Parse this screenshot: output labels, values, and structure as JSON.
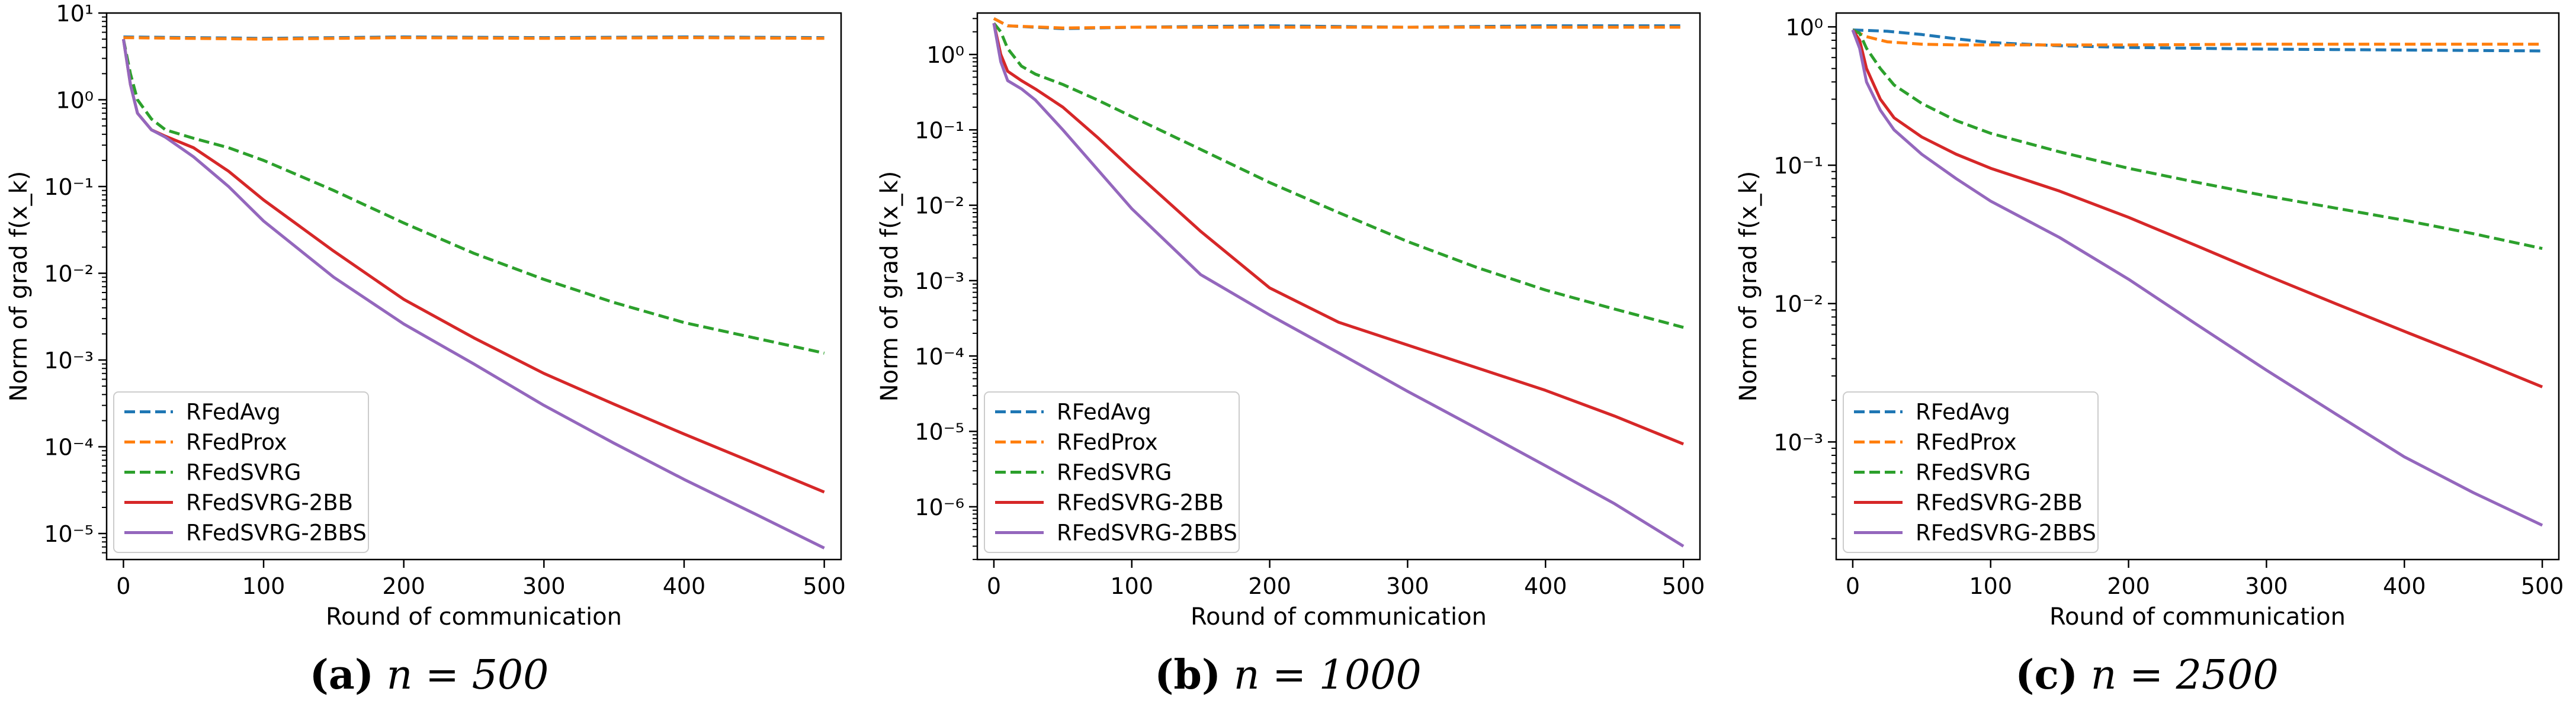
{
  "chart_data": [
    {
      "type": "line",
      "panel_label": "(a)",
      "caption_expr": "n = 500",
      "xlabel": "Round of communication",
      "ylabel": "Norm of grad f(x_k)",
      "yscale": "log",
      "xlim": [
        -12,
        512
      ],
      "ylim_log10": [
        -5.3,
        1.0
      ],
      "xticks": [
        0,
        100,
        200,
        300,
        400,
        500
      ],
      "yticks_exp": [
        -5,
        -4,
        -3,
        -2,
        -1,
        0,
        1
      ],
      "legend_loc": "lower-left",
      "series": [
        {
          "name": "RFedAvg",
          "color": "#1f77b4",
          "dash": true,
          "x": [
            0,
            100,
            200,
            300,
            400,
            500
          ],
          "y": [
            5.3,
            5.1,
            5.3,
            5.2,
            5.3,
            5.2
          ]
        },
        {
          "name": "RFedProx",
          "color": "#ff7f0e",
          "dash": true,
          "x": [
            0,
            100,
            200,
            300,
            400,
            500
          ],
          "y": [
            5.2,
            5.0,
            5.2,
            5.1,
            5.2,
            5.1
          ]
        },
        {
          "name": "RFedSVRG",
          "color": "#2ca02c",
          "dash": true,
          "x": [
            0,
            5,
            10,
            20,
            30,
            50,
            75,
            100,
            150,
            200,
            250,
            300,
            350,
            400,
            450,
            500
          ],
          "y": [
            5.0,
            2.0,
            1.0,
            0.6,
            0.45,
            0.36,
            0.28,
            0.2,
            0.09,
            0.038,
            0.017,
            0.0085,
            0.0046,
            0.0027,
            0.0018,
            0.0012
          ]
        },
        {
          "name": "RFedSVRG-2BB",
          "color": "#d62728",
          "dash": false,
          "x": [
            0,
            5,
            10,
            20,
            30,
            50,
            75,
            100,
            150,
            200,
            250,
            300,
            350,
            400,
            450,
            500
          ],
          "y": [
            5.0,
            1.5,
            0.7,
            0.45,
            0.38,
            0.28,
            0.15,
            0.07,
            0.018,
            0.005,
            0.0018,
            0.0007,
            0.00031,
            0.00014,
            6.5e-05,
            3e-05
          ]
        },
        {
          "name": "RFedSVRG-2BBS",
          "color": "#9467bd",
          "dash": false,
          "x": [
            0,
            5,
            10,
            20,
            30,
            50,
            75,
            100,
            150,
            200,
            250,
            300,
            350,
            400,
            450,
            500
          ],
          "y": [
            5.0,
            1.5,
            0.7,
            0.45,
            0.37,
            0.22,
            0.1,
            0.04,
            0.009,
            0.0026,
            0.0009,
            0.0003,
            0.00011,
            4.2e-05,
            1.7e-05,
            6.8e-06
          ]
        }
      ]
    },
    {
      "type": "line",
      "panel_label": "(b)",
      "caption_expr": "n = 1000",
      "xlabel": "Round of communication",
      "ylabel": "Norm of grad f(x_k)",
      "yscale": "log",
      "xlim": [
        -12,
        512
      ],
      "ylim_log10": [
        -6.7,
        0.55
      ],
      "xticks": [
        0,
        100,
        200,
        300,
        400,
        500
      ],
      "yticks_exp": [
        -6,
        -5,
        -4,
        -3,
        -2,
        -1,
        0
      ],
      "legend_loc": "lower-left",
      "series": [
        {
          "name": "RFedAvg",
          "color": "#1f77b4",
          "dash": true,
          "x": [
            0,
            10,
            50,
            100,
            200,
            300,
            400,
            500
          ],
          "y": [
            3.0,
            2.4,
            2.2,
            2.3,
            2.4,
            2.3,
            2.4,
            2.4
          ]
        },
        {
          "name": "RFedProx",
          "color": "#ff7f0e",
          "dash": true,
          "x": [
            0,
            10,
            50,
            100,
            200,
            300,
            400,
            500
          ],
          "y": [
            3.0,
            2.4,
            2.25,
            2.3,
            2.3,
            2.3,
            2.3,
            2.3
          ]
        },
        {
          "name": "RFedSVRG",
          "color": "#2ca02c",
          "dash": true,
          "x": [
            0,
            5,
            10,
            20,
            30,
            50,
            75,
            100,
            150,
            200,
            250,
            300,
            350,
            400,
            450,
            500
          ],
          "y": [
            2.6,
            2.0,
            1.2,
            0.7,
            0.55,
            0.4,
            0.25,
            0.15,
            0.055,
            0.02,
            0.008,
            0.0033,
            0.0015,
            0.00075,
            0.00042,
            0.00024
          ]
        },
        {
          "name": "RFedSVRG-2BB",
          "color": "#d62728",
          "dash": false,
          "x": [
            0,
            5,
            10,
            20,
            30,
            50,
            75,
            100,
            150,
            200,
            250,
            300,
            350,
            400,
            450,
            500
          ],
          "y": [
            2.6,
            1.0,
            0.6,
            0.45,
            0.35,
            0.2,
            0.08,
            0.03,
            0.0045,
            0.0008,
            0.00028,
            0.00014,
            7e-05,
            3.5e-05,
            1.6e-05,
            6.8e-06
          ]
        },
        {
          "name": "RFedSVRG-2BBS",
          "color": "#9467bd",
          "dash": false,
          "x": [
            0,
            5,
            10,
            20,
            30,
            50,
            75,
            100,
            150,
            200,
            250,
            300,
            350,
            400,
            450,
            500
          ],
          "y": [
            2.6,
            0.8,
            0.45,
            0.35,
            0.25,
            0.1,
            0.03,
            0.009,
            0.0012,
            0.00035,
            0.00011,
            3.4e-05,
            1.1e-05,
            3.5e-06,
            1.1e-06,
            3e-07
          ]
        }
      ]
    },
    {
      "type": "line",
      "panel_label": "(c)",
      "caption_expr": "n = 2500",
      "xlabel": "Round of communication",
      "ylabel": "Norm of grad f(x_k)",
      "yscale": "log",
      "xlim": [
        -12,
        512
      ],
      "ylim_log10": [
        -3.85,
        0.1
      ],
      "xticks": [
        0,
        100,
        200,
        300,
        400,
        500
      ],
      "yticks_exp": [
        -3,
        -2,
        -1,
        0
      ],
      "legend_loc": "lower-left",
      "series": [
        {
          "name": "RFedAvg",
          "color": "#1f77b4",
          "dash": true,
          "x": [
            0,
            25,
            50,
            75,
            100,
            150,
            200,
            300,
            400,
            500
          ],
          "y": [
            0.95,
            0.93,
            0.88,
            0.82,
            0.77,
            0.73,
            0.71,
            0.69,
            0.68,
            0.67
          ]
        },
        {
          "name": "RFedProx",
          "color": "#ff7f0e",
          "dash": true,
          "x": [
            0,
            10,
            25,
            50,
            75,
            100,
            150,
            200,
            300,
            400,
            500
          ],
          "y": [
            0.95,
            0.85,
            0.78,
            0.75,
            0.74,
            0.74,
            0.74,
            0.74,
            0.75,
            0.75,
            0.75
          ]
        },
        {
          "name": "RFedSVRG",
          "color": "#2ca02c",
          "dash": true,
          "x": [
            0,
            5,
            10,
            20,
            30,
            50,
            75,
            100,
            150,
            200,
            250,
            300,
            350,
            400,
            450,
            500
          ],
          "y": [
            0.95,
            0.9,
            0.7,
            0.5,
            0.38,
            0.28,
            0.21,
            0.17,
            0.125,
            0.095,
            0.075,
            0.06,
            0.049,
            0.04,
            0.032,
            0.025
          ]
        },
        {
          "name": "RFedSVRG-2BB",
          "color": "#d62728",
          "dash": false,
          "x": [
            0,
            5,
            10,
            20,
            30,
            50,
            75,
            100,
            150,
            200,
            250,
            300,
            350,
            400,
            450,
            500
          ],
          "y": [
            0.95,
            0.8,
            0.5,
            0.3,
            0.22,
            0.16,
            0.12,
            0.095,
            0.065,
            0.042,
            0.026,
            0.016,
            0.01,
            0.0063,
            0.004,
            0.0025
          ]
        },
        {
          "name": "RFedSVRG-2BBS",
          "color": "#9467bd",
          "dash": false,
          "x": [
            0,
            5,
            10,
            20,
            30,
            50,
            75,
            100,
            150,
            200,
            250,
            300,
            350,
            400,
            450,
            500
          ],
          "y": [
            0.95,
            0.7,
            0.4,
            0.25,
            0.18,
            0.12,
            0.08,
            0.055,
            0.03,
            0.015,
            0.007,
            0.0033,
            0.0016,
            0.00078,
            0.00043,
            0.00025
          ]
        }
      ]
    }
  ]
}
